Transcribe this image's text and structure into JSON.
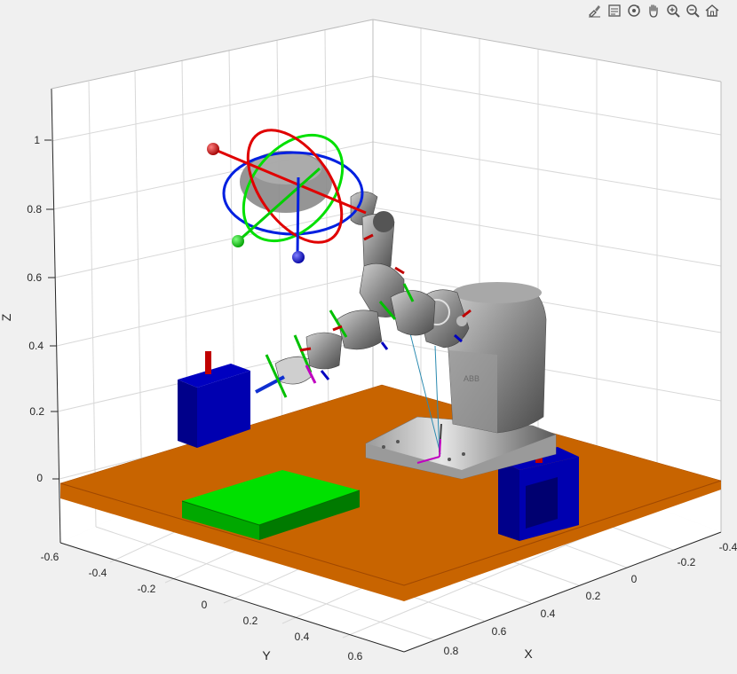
{
  "window": {
    "background_color": "#f0f0f0"
  },
  "toolbar": {
    "buttons": [
      {
        "icon": "brush-icon"
      },
      {
        "icon": "data-cursor-icon"
      },
      {
        "icon": "rotate-3d-icon"
      },
      {
        "icon": "pan-hand-icon"
      },
      {
        "icon": "zoom-in-icon"
      },
      {
        "icon": "zoom-out-icon"
      },
      {
        "icon": "home-icon"
      }
    ]
  },
  "axes": {
    "z_label": "Z",
    "y_label": "Y",
    "x_label": "X",
    "z_ticks": [
      "1",
      "0.8",
      "0.6",
      "0.4",
      "0.2",
      "0"
    ],
    "y_ticks": [
      "-0.6",
      "-0.4",
      "-0.2",
      "0",
      "0.2",
      "0.4",
      "0.6"
    ],
    "x_ticks": [
      "-0.4",
      "-0.2",
      "0",
      "0.2",
      "0.4",
      "0.6",
      "0.8"
    ]
  },
  "colors": {
    "floor": "#c86400",
    "green_box": "#00e000",
    "blue_box": "#0000b0",
    "red_marker": "#c00000",
    "robot_gray": "#808080",
    "grid": "#d8d8d8",
    "pane": "#ffffff"
  }
}
